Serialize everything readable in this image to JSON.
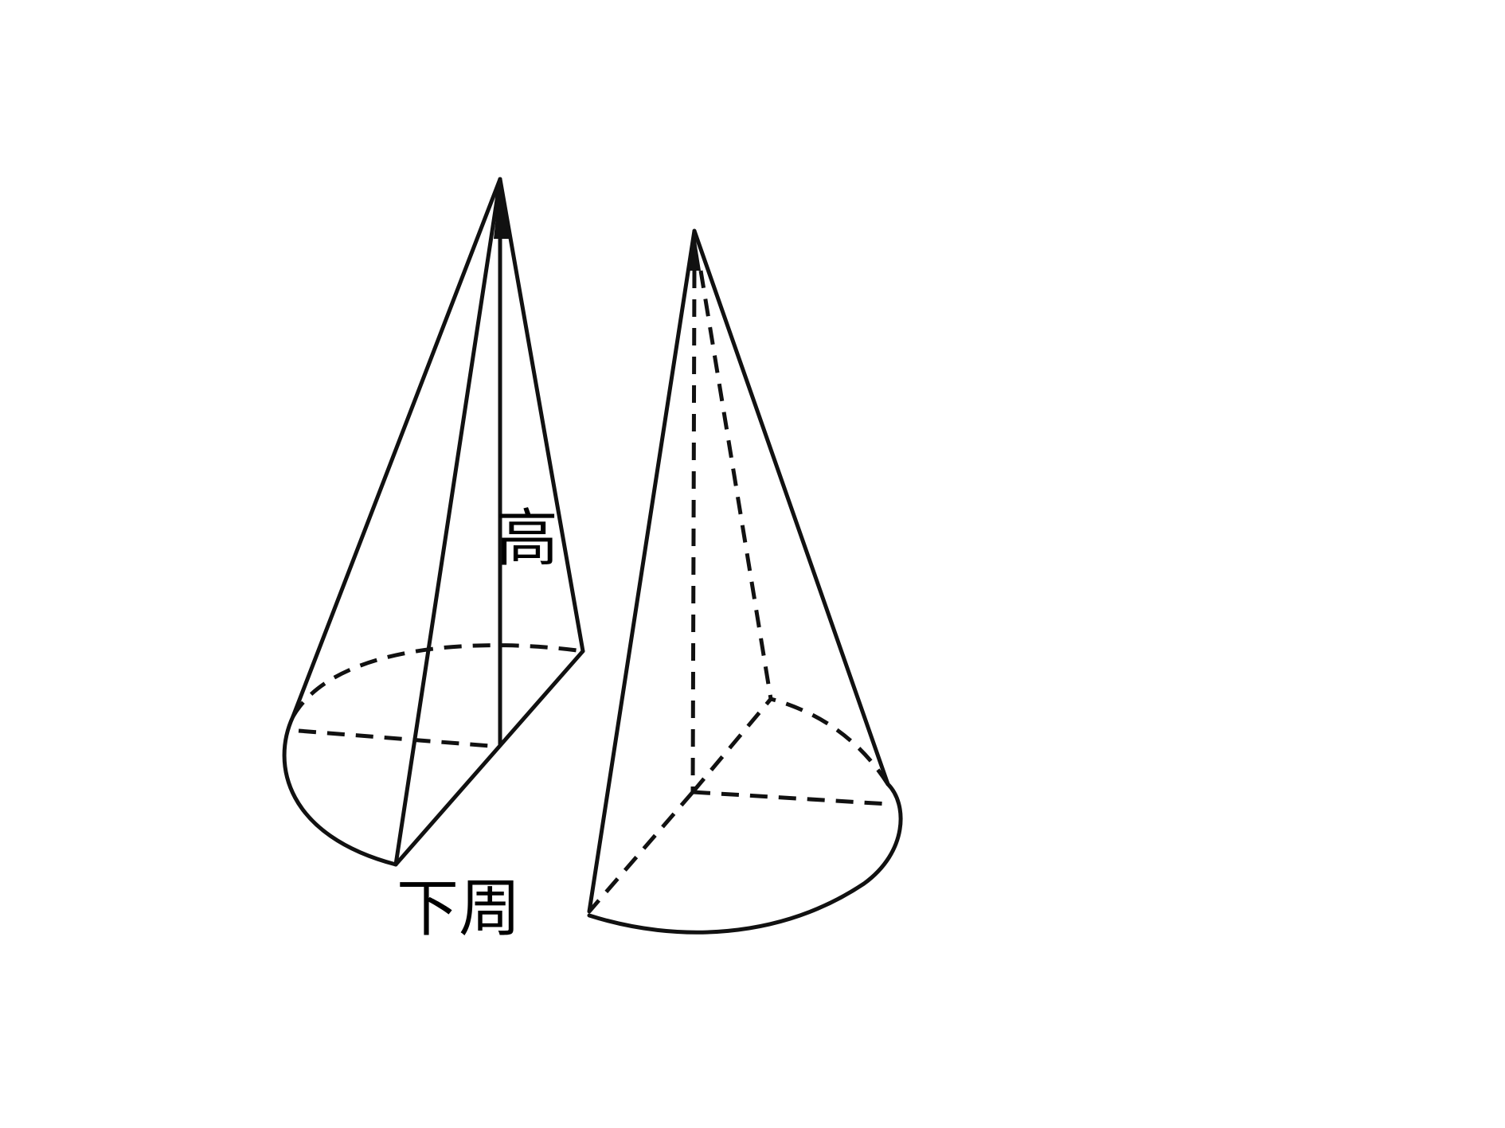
{
  "labels": {
    "height": "高",
    "bottom_circumference": "下周"
  },
  "colors": {
    "stroke": "#111111",
    "text": "#000000",
    "background": "#ffffff"
  }
}
